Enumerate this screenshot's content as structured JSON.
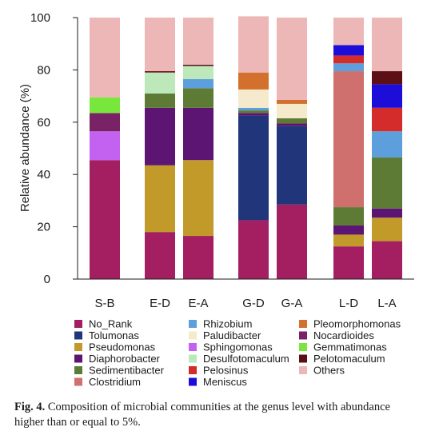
{
  "chart_data": {
    "type": "stacked-bar",
    "ylabel": "Relative abundance (%)",
    "ylim": [
      0,
      100
    ],
    "yticks": [
      0,
      20,
      40,
      60,
      80,
      100
    ],
    "categories": [
      "S-B",
      "E-D",
      "E-A",
      "G-D",
      "G-A",
      "L-D",
      "L-A"
    ],
    "series": [
      {
        "name": "No_Rank",
        "color": "#a31f62",
        "values": [
          45.5,
          18,
          16.5,
          22.5,
          28.5,
          12.5,
          14.5
        ]
      },
      {
        "name": "Tolumonas",
        "color": "#21367a",
        "values": [
          0,
          0,
          0,
          40,
          30,
          0,
          0
        ]
      },
      {
        "name": "Pseudomonas",
        "color": "#c29a2a",
        "values": [
          0,
          25.5,
          29,
          0,
          0,
          4.5,
          9
        ]
      },
      {
        "name": "Diaphorobacter",
        "color": "#5c1572",
        "values": [
          0,
          22,
          20,
          1,
          1,
          3.5,
          3.5
        ]
      },
      {
        "name": "Sedimentibacter",
        "color": "#5e7b35",
        "values": [
          0,
          5.5,
          7.5,
          1,
          2,
          7,
          19.5
        ]
      },
      {
        "name": "Clostridium",
        "color": "#cf6f6e",
        "values": [
          0,
          0,
          0,
          0,
          0,
          52,
          0
        ]
      },
      {
        "name": "Rhizobium",
        "color": "#5d9fdc",
        "values": [
          0,
          0,
          3.5,
          1,
          0,
          3,
          10
        ]
      },
      {
        "name": "Paludibacter",
        "color": "#f6eacd",
        "values": [
          0,
          0,
          0,
          7,
          5.5,
          0,
          0
        ]
      },
      {
        "name": "Sphingomonas",
        "color": "#c362f0",
        "values": [
          11,
          0,
          0,
          0,
          0,
          0,
          0
        ]
      },
      {
        "name": "Desulfotomaculum",
        "color": "#bce8ba",
        "values": [
          0,
          8,
          5,
          0,
          0,
          0,
          0
        ]
      },
      {
        "name": "Pelosinus",
        "color": "#d42c2b",
        "values": [
          0,
          0,
          0,
          0,
          0,
          3,
          9
        ]
      },
      {
        "name": "Meniscus",
        "color": "#1c0ed8",
        "values": [
          0,
          0,
          0,
          0,
          0,
          4,
          9
        ]
      },
      {
        "name": "Pleomorphomonas",
        "color": "#d3702d",
        "values": [
          0,
          0,
          0,
          6.5,
          1.5,
          0,
          0
        ]
      },
      {
        "name": "Nocardioides",
        "color": "#7a2266",
        "values": [
          7,
          0,
          0,
          0,
          0,
          0,
          0
        ]
      },
      {
        "name": "Gemmatimonas",
        "color": "#78e63a",
        "values": [
          6,
          0,
          0,
          0,
          0,
          0,
          0
        ]
      },
      {
        "name": "Pelotomaculum",
        "color": "#5c1016",
        "values": [
          0,
          0.5,
          0.5,
          0,
          0,
          0,
          5
        ]
      },
      {
        "name": "Others",
        "color": "#edb7b7",
        "values": [
          30.5,
          20.5,
          18,
          21.5,
          31.5,
          10.5,
          20.5
        ]
      }
    ],
    "legend_position": "bottom",
    "grid": false
  },
  "caption": {
    "label": "Fig. 4.",
    "text": "Composition of microbial communities at the genus level with abundance higher than or equal to 5%."
  }
}
